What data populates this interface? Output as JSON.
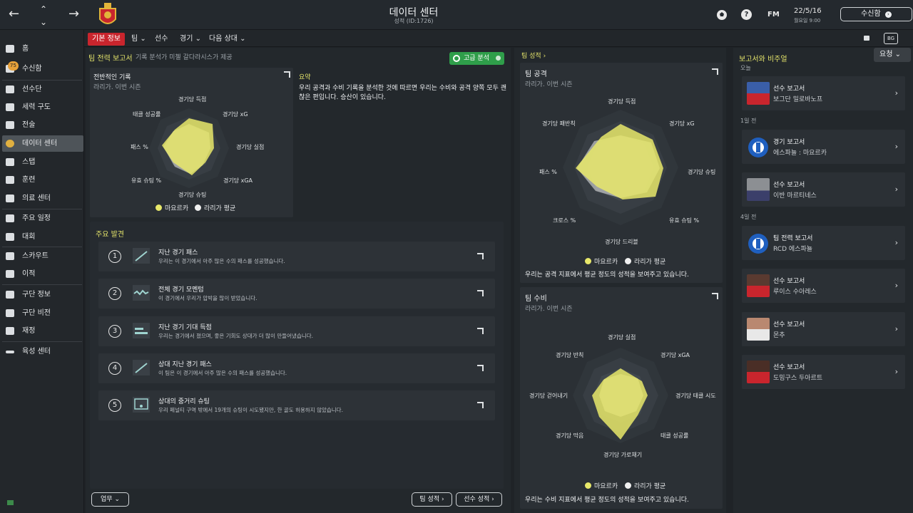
{
  "topbar": {
    "title": "데이터 센터",
    "subtitle": "성적 (ID:1726)",
    "date": "22/5/16",
    "time": "월요일 9:00",
    "fm": "FM",
    "help": "?",
    "inbox": "수신함"
  },
  "sidebar": {
    "badge": "75",
    "items": [
      {
        "label": "홈",
        "icon": "home-icon"
      },
      {
        "label": "수신함",
        "icon": "inbox-icon"
      },
      {
        "label": "선수단",
        "icon": "shirt-icon"
      },
      {
        "label": "세력 구도",
        "icon": "dynamics-icon"
      },
      {
        "label": "전술",
        "icon": "tactics-icon"
      },
      {
        "label": "데이터 센터",
        "icon": "data-center-icon"
      },
      {
        "label": "스탭",
        "icon": "staff-icon"
      },
      {
        "label": "훈련",
        "icon": "training-icon"
      },
      {
        "label": "의료 센터",
        "icon": "medical-icon"
      },
      {
        "label": "주요 일정",
        "icon": "calendar-icon"
      },
      {
        "label": "대회",
        "icon": "trophy-icon"
      },
      {
        "label": "스카우트",
        "icon": "scout-icon"
      },
      {
        "label": "이적",
        "icon": "transfer-icon"
      },
      {
        "label": "구단 정보",
        "icon": "club-info-icon"
      },
      {
        "label": "구단 비전",
        "icon": "club-vision-icon"
      },
      {
        "label": "재정",
        "icon": "finance-icon"
      },
      {
        "label": "육성 센터",
        "icon": "development-icon"
      }
    ]
  },
  "subnav": {
    "items": [
      "기본 정보",
      "팀",
      "선수",
      "경기",
      "다음 상대"
    ],
    "badge": "BG"
  },
  "left": {
    "header": "팀 전력 보고서",
    "header_sub": "기록 분석가 미첼 갈다라시스가 제공",
    "advanced": "고급 분석",
    "overall": {
      "title": "전반적인 기록",
      "subtitle": "라리가. 이번 시즌"
    },
    "summary": {
      "title": "요약",
      "text": "우리 공격과 수비 기록을 분석한 것에 따르면 우리는 수비와 공격 양쪽 모두 괜찮은 편입니다. 승산이 있습니다."
    },
    "radar_labels": [
      "경기당 득점",
      "경기당 xG",
      "경기당 실점",
      "경기당 xGA",
      "경기당 슈팅",
      "유효 슈팅 %",
      "패스 %",
      "태클 성공률"
    ],
    "legend_team": "마요르카",
    "legend_avg": "라리가 평균",
    "findings_title": "주요 발견",
    "findings": [
      {
        "n": "1",
        "title": "지난 경기 패스",
        "desc": "우리는 이 경기에서 아주 많은 수의 패스를 성공했습니다."
      },
      {
        "n": "2",
        "title": "전체 경기 모멘텀",
        "desc": "이 경기에서 우리가 압박을 많이 받았습니다."
      },
      {
        "n": "3",
        "title": "지난 경기 기대 득점",
        "desc": "우리는 경기에서 졌으며, 좋은 기회도 상대가 더 많이 만들어냈습니다."
      },
      {
        "n": "4",
        "title": "상대 지난 경기 패스",
        "desc": "이 팀은 이 경기에서 아주 많은 수의 패스를 성공했습니다."
      },
      {
        "n": "5",
        "title": "상대의 중거리 슈팅",
        "desc": "우리 페널티 구역 밖에서 19개의 슈팅이 시도됐지만, 한 골도 허용하지 않았습니다."
      }
    ],
    "work_btn": "업무",
    "team_btn": "팀 성적",
    "player_btn": "선수 성적"
  },
  "middle": {
    "header": "팀 성적",
    "attack": {
      "title": "팀 공격",
      "subtitle": "라리가. 이번 시즌",
      "labels": [
        "경기당 득점",
        "경기당 xG",
        "경기당 슈팅",
        "유효 슈팅 %",
        "경기당 드리블",
        "크로스 %",
        "패스 %",
        "경기당 패반칙"
      ],
      "summary": "우리는 공격 지표에서 평균 정도의 성적을 보여주고 있습니다."
    },
    "defense": {
      "title": "팀 수비",
      "subtitle": "라리가. 이번 시즌",
      "labels": [
        "경기당 실점",
        "경기당 xGA",
        "경기당 태클 시도",
        "태클 성공률",
        "경기당 가로채기",
        "경기당 막음",
        "경기당 걷어내기",
        "경기당 반칙"
      ],
      "summary": "우리는 수비 지표에서 평균 정도의 성적을 보여주고 있습니다."
    },
    "legend_team": "마요르카",
    "legend_avg": "라리가 평균"
  },
  "right": {
    "header": "보고서와 비주얼",
    "filter": "요청",
    "groups": [
      {
        "time": "오늘",
        "reports": [
          {
            "title": "선수 보고서",
            "sub": "보그단 밀로바노프"
          }
        ]
      },
      {
        "time": "1일 전",
        "reports": [
          {
            "title": "경기 보고서",
            "sub": "에스파뇰 : 마요르카"
          },
          {
            "title": "선수 보고서",
            "sub": "이반 마르티네스"
          }
        ]
      },
      {
        "time": "4일 전",
        "reports": [
          {
            "title": "팀 전력 보고서",
            "sub": "RCD 에스파뇰"
          },
          {
            "title": "선수 보고서",
            "sub": "루이스 수아레스"
          },
          {
            "title": "선수 보고서",
            "sub": "몬추"
          },
          {
            "title": "선수 보고서",
            "sub": "도밍구스 두아르트"
          }
        ]
      }
    ]
  },
  "colors": {
    "accent_red": "#c9252d",
    "team_yellow": "#e8e86a",
    "avg_white": "#f0f0f0",
    "advanced_green": "#2f9e4a"
  }
}
